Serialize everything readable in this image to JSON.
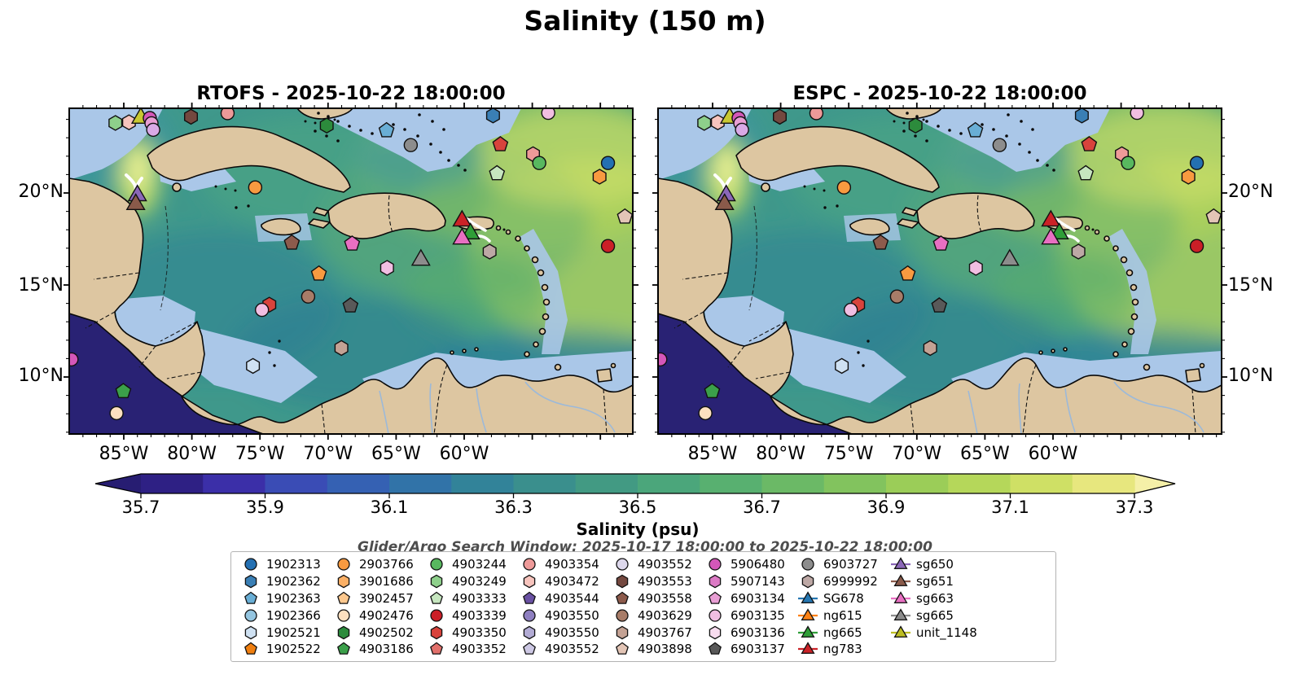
{
  "figure": {
    "title": "Salinity (150 m)"
  },
  "panels": [
    {
      "id": "rtofs",
      "title": "RTOFS - 2025-10-22 18:00:00"
    },
    {
      "id": "espc",
      "title": "ESPC - 2025-10-22 18:00:00"
    }
  ],
  "axes": {
    "lon_ticks": [
      "85°W",
      "80°W",
      "75°W",
      "70°W",
      "65°W",
      "60°W"
    ],
    "lat_ticks": [
      "20°N",
      "15°N",
      "10°N"
    ]
  },
  "colorbar": {
    "label": "Salinity (psu)",
    "ticks": [
      "35.7",
      "35.9",
      "36.1",
      "36.3",
      "36.5",
      "36.7",
      "36.9",
      "37.1",
      "37.3"
    ],
    "segment_colors": [
      "#2e2084",
      "#3b2fa8",
      "#3a4cb5",
      "#3561b3",
      "#3173a8",
      "#328399",
      "#3a8f8d",
      "#429a83",
      "#4ba67b",
      "#58b070",
      "#6bb966",
      "#82c35e",
      "#9bcd58",
      "#b5d75a",
      "#cfe065",
      "#e7e77e"
    ],
    "under_color": "#271d72",
    "over_color": "#f5f0a8"
  },
  "subtitle": "Glider/Argo Search Window: 2025-10-17 18:00:00 to 2025-10-22 18:00:00",
  "map_colors": {
    "land": "#ddc6a1",
    "shallow_mask": "#aac7e8",
    "deep_out_of_range": "#292274",
    "coastline": "#0a0a0a",
    "river": "#9cb9d9"
  },
  "legend": {
    "columns": [
      [
        {
          "label": "1902313",
          "shape": "circle",
          "color": "#2470b2"
        },
        {
          "label": "1902362",
          "shape": "hexagon",
          "color": "#3a7fb5"
        },
        {
          "label": "1902363",
          "shape": "pentagon",
          "color": "#69aed5"
        },
        {
          "label": "1902366",
          "shape": "circle",
          "color": "#94c5e0"
        },
        {
          "label": "1902521",
          "shape": "hexagon",
          "color": "#cfe1f2"
        },
        {
          "label": "1902522",
          "shape": "pentagon",
          "color": "#f07f10"
        }
      ],
      [
        {
          "label": "2903766",
          "shape": "circle",
          "color": "#f89a40"
        },
        {
          "label": "3901686",
          "shape": "hexagon",
          "color": "#fbb066"
        },
        {
          "label": "3902457",
          "shape": "pentagon",
          "color": "#fdc88e"
        },
        {
          "label": "4902476",
          "shape": "circle",
          "color": "#fde0c0"
        },
        {
          "label": "4902502",
          "shape": "hexagon",
          "color": "#2c8b3c"
        },
        {
          "label": "4903186",
          "shape": "pentagon",
          "color": "#3ba04a"
        }
      ],
      [
        {
          "label": "4903244",
          "shape": "circle",
          "color": "#58b85f"
        },
        {
          "label": "4903249",
          "shape": "hexagon",
          "color": "#8ed08b"
        },
        {
          "label": "4903333",
          "shape": "pentagon",
          "color": "#c6e6bf"
        },
        {
          "label": "4903339",
          "shape": "circle",
          "color": "#cb1f27"
        },
        {
          "label": "4903350",
          "shape": "hexagon",
          "color": "#d8433c"
        },
        {
          "label": "4903352",
          "shape": "pentagon",
          "color": "#e2706b"
        }
      ],
      [
        {
          "label": "4903354",
          "shape": "circle",
          "color": "#ee9a99"
        },
        {
          "label": "4903472",
          "shape": "hexagon",
          "color": "#f7c4bd"
        },
        {
          "label": "4903544",
          "shape": "pentagon",
          "color": "#6a51a3"
        },
        {
          "label": "4903550",
          "shape": "circle",
          "color": "#8e7fc0"
        },
        {
          "label": "4903550",
          "shape": "hexagon",
          "color": "#b2abd4"
        },
        {
          "label": "4903552",
          "shape": "pentagon",
          "color": "#cdc8e4"
        }
      ],
      [
        {
          "label": "4903552",
          "shape": "circle",
          "color": "#ddd8ec"
        },
        {
          "label": "4903553",
          "shape": "hexagon",
          "color": "#74483f"
        },
        {
          "label": "4903558",
          "shape": "pentagon",
          "color": "#8d5b4c"
        },
        {
          "label": "4903629",
          "shape": "circle",
          "color": "#a87c68"
        },
        {
          "label": "4903767",
          "shape": "hexagon",
          "color": "#c4a294"
        },
        {
          "label": "4903898",
          "shape": "pentagon",
          "color": "#e3c5b6"
        }
      ],
      [
        {
          "label": "5906480",
          "shape": "circle",
          "color": "#d457b9"
        },
        {
          "label": "5907143",
          "shape": "hexagon",
          "color": "#dc7ac5"
        },
        {
          "label": "6903134",
          "shape": "pentagon",
          "color": "#e89ed4"
        },
        {
          "label": "6903135",
          "shape": "circle",
          "color": "#f1bee2"
        },
        {
          "label": "6903136",
          "shape": "hexagon",
          "color": "#f8dcef"
        },
        {
          "label": "6903137",
          "shape": "pentagon",
          "color": "#595959"
        }
      ],
      [
        {
          "label": "6903727",
          "shape": "circle",
          "color": "#8d8d8d"
        },
        {
          "label": "6999992",
          "shape": "hexagon",
          "color": "#bda8a5"
        },
        {
          "label": "SG678",
          "shape": "triangle",
          "color": "#2577b2",
          "line": true
        },
        {
          "label": "ng615",
          "shape": "triangle",
          "color": "#fd8114",
          "line": true
        },
        {
          "label": "ng665",
          "shape": "triangle",
          "color": "#2f9e38",
          "line": true
        },
        {
          "label": "ng783",
          "shape": "triangle",
          "color": "#cb2227",
          "line": true
        }
      ],
      [
        {
          "label": "sg650",
          "shape": "triangle",
          "color": "#8b67b8",
          "line": true
        },
        {
          "label": "sg651",
          "shape": "triangle",
          "color": "#8a5a4a",
          "line": true
        },
        {
          "label": "sg663",
          "shape": "triangle",
          "color": "#e86fc2",
          "line": true
        },
        {
          "label": "sg665",
          "shape": "triangle",
          "color": "#8c8c8c",
          "line": true
        },
        {
          "label": "unit_1148",
          "shape": "triangle",
          "color": "#bcbd22",
          "line": true
        }
      ]
    ]
  },
  "markers": [
    {
      "shape": "hexagon",
      "color": "#8ed08b",
      "x": 0.082,
      "y": 0.045
    },
    {
      "shape": "hexagon",
      "color": "#f7c4bd",
      "x": 0.106,
      "y": 0.043
    },
    {
      "shape": "triangle",
      "color": "#c8c832",
      "x": 0.127,
      "y": 0.03,
      "glider": true
    },
    {
      "shape": "circle",
      "color": "#d457b9",
      "x": 0.143,
      "y": 0.03
    },
    {
      "shape": "circle",
      "color": "#e89ed4",
      "x": 0.146,
      "y": 0.046
    },
    {
      "shape": "circle",
      "color": "#d9a9e6",
      "x": 0.149,
      "y": 0.066
    },
    {
      "shape": "hexagon",
      "color": "#74483f",
      "x": 0.216,
      "y": 0.026
    },
    {
      "shape": "circle",
      "color": "#ee9a99",
      "x": 0.281,
      "y": 0.015
    },
    {
      "shape": "hexagon",
      "color": "#2c8b3c",
      "x": 0.457,
      "y": 0.053
    },
    {
      "shape": "pentagon",
      "color": "#69aed5",
      "x": 0.563,
      "y": 0.068
    },
    {
      "shape": "circle",
      "color": "#8d8d8d",
      "x": 0.606,
      "y": 0.113
    },
    {
      "shape": "hexagon",
      "color": "#3a7fb5",
      "x": 0.752,
      "y": 0.022
    },
    {
      "shape": "circle",
      "color": "#f1bee2",
      "x": 0.85,
      "y": 0.014
    },
    {
      "shape": "pentagon",
      "color": "#d8433c",
      "x": 0.765,
      "y": 0.111
    },
    {
      "shape": "hexagon",
      "color": "#ee9a99",
      "x": 0.823,
      "y": 0.141
    },
    {
      "shape": "circle",
      "color": "#58b85f",
      "x": 0.834,
      "y": 0.168
    },
    {
      "shape": "pentagon",
      "color": "#c6e6bf",
      "x": 0.759,
      "y": 0.2
    },
    {
      "shape": "circle",
      "color": "#2470b2",
      "x": 0.956,
      "y": 0.168
    },
    {
      "shape": "hexagon",
      "color": "#f89a40",
      "x": 0.941,
      "y": 0.21
    },
    {
      "shape": "circle",
      "color": "#f89a40",
      "x": 0.33,
      "y": 0.243
    },
    {
      "shape": "triangle",
      "color": "#8b67b8",
      "x": 0.121,
      "y": 0.268,
      "glider": true
    },
    {
      "shape": "triangle",
      "color": "#8a5a4a",
      "x": 0.118,
      "y": 0.295,
      "glider": true
    },
    {
      "shape": "triangle",
      "color": "#cb2227",
      "x": 0.697,
      "y": 0.346,
      "glider": true
    },
    {
      "shape": "triangle",
      "color": "#2f9e38",
      "x": 0.712,
      "y": 0.385,
      "glider": true
    },
    {
      "shape": "triangle",
      "color": "#e86fc2",
      "x": 0.697,
      "y": 0.401,
      "glider": true
    },
    {
      "shape": "triangle",
      "color": "#8c8c8c",
      "x": 0.624,
      "y": 0.466,
      "glider": true
    },
    {
      "shape": "pentagon",
      "color": "#e3c5b6",
      "x": 0.986,
      "y": 0.333
    },
    {
      "shape": "circle",
      "color": "#cb1f27",
      "x": 0.956,
      "y": 0.423
    },
    {
      "shape": "pentagon",
      "color": "#8d5b4c",
      "x": 0.395,
      "y": 0.413
    },
    {
      "shape": "pentagon",
      "color": "#e86fc2",
      "x": 0.502,
      "y": 0.416
    },
    {
      "shape": "hexagon",
      "color": "#bda8a5",
      "x": 0.746,
      "y": 0.44
    },
    {
      "shape": "hexagon",
      "color": "#f1bee2",
      "x": 0.564,
      "y": 0.49
    },
    {
      "shape": "pentagon",
      "color": "#f89a40",
      "x": 0.443,
      "y": 0.508
    },
    {
      "shape": "circle",
      "color": "#a87c68",
      "x": 0.424,
      "y": 0.578
    },
    {
      "shape": "pentagon",
      "color": "#595959",
      "x": 0.499,
      "y": 0.606
    },
    {
      "shape": "hexagon",
      "color": "#d8433c",
      "x": 0.355,
      "y": 0.603
    },
    {
      "shape": "circle",
      "color": "#f1bee2",
      "x": 0.342,
      "y": 0.619
    },
    {
      "shape": "hexagon",
      "color": "#c4a294",
      "x": 0.483,
      "y": 0.736
    },
    {
      "shape": "hexagon",
      "color": "#cfe1f2",
      "x": 0.326,
      "y": 0.791
    },
    {
      "shape": "circle",
      "color": "#d457b9",
      "x": 0.004,
      "y": 0.771
    },
    {
      "shape": "pentagon",
      "color": "#3ba04a",
      "x": 0.096,
      "y": 0.869
    },
    {
      "shape": "circle",
      "color": "#fde0c0",
      "x": 0.084,
      "y": 0.936
    }
  ],
  "chart_data": {
    "type": "heatmap",
    "title": "Salinity (150 m)",
    "panels": [
      "RTOFS - 2025-10-22 18:00:00",
      "ESPC - 2025-10-22 18:00:00"
    ],
    "x_tick_labels": [
      "85°W",
      "80°W",
      "75°W",
      "70°W",
      "65°W",
      "60°W"
    ],
    "y_tick_labels": [
      "20°N",
      "15°N",
      "10°N"
    ],
    "colorbar_label": "Salinity (psu)",
    "colorbar_ticks": [
      35.7,
      35.9,
      36.1,
      36.3,
      36.5,
      36.7,
      36.9,
      37.1,
      37.3
    ],
    "value_range": [
      35.7,
      37.3
    ],
    "extend": "both",
    "search_window": "2025-10-17 18:00:00 to 2025-10-22 18:00:00",
    "platforms": [
      "1902313",
      "1902362",
      "1902363",
      "1902366",
      "1902521",
      "1902522",
      "2903766",
      "3901686",
      "3902457",
      "4902476",
      "4902502",
      "4903186",
      "4903244",
      "4903249",
      "4903333",
      "4903339",
      "4903350",
      "4903352",
      "4903354",
      "4903472",
      "4903544",
      "4903550",
      "4903550",
      "4903552",
      "4903552",
      "4903553",
      "4903558",
      "4903629",
      "4903767",
      "4903898",
      "5906480",
      "5907143",
      "6903134",
      "6903135",
      "6903136",
      "6903137",
      "6903727",
      "6999992",
      "SG678",
      "ng615",
      "ng665",
      "ng783",
      "sg650",
      "sg651",
      "sg663",
      "sg665",
      "unit_1148"
    ]
  }
}
